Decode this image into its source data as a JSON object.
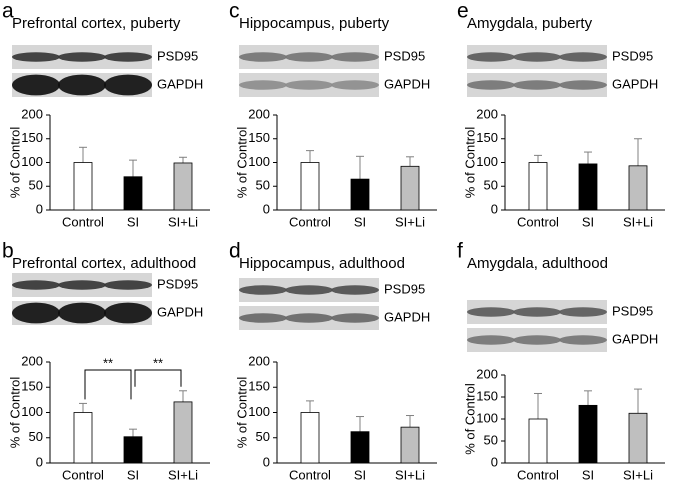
{
  "chart_data": [
    {
      "type": "bar",
      "panel_label": "a",
      "title": "Prefrontal cortex, puberty",
      "blot_labels": [
        "PSD95",
        "GAPDH"
      ],
      "ylabel": "% of Control",
      "categories": [
        "Control",
        "SI",
        "SI+Li"
      ],
      "values": [
        100,
        70,
        99
      ],
      "errors": [
        32,
        35,
        12
      ],
      "colors": [
        "#ffffff",
        "#000000",
        "#bfbfbf"
      ],
      "ylim": [
        0,
        200
      ],
      "yticks": [
        0,
        50,
        100,
        150,
        200
      ]
    },
    {
      "type": "bar",
      "panel_label": "b",
      "title": "Prefrontal cortex, adulthood",
      "blot_labels": [
        "PSD95",
        "GAPDH"
      ],
      "ylabel": "% of Control",
      "categories": [
        "Control",
        "SI",
        "SI+Li"
      ],
      "values": [
        100,
        52,
        121
      ],
      "errors": [
        18,
        15,
        22
      ],
      "colors": [
        "#ffffff",
        "#000000",
        "#bfbfbf"
      ],
      "ylim": [
        0,
        200
      ],
      "yticks": [
        0,
        50,
        100,
        150,
        200
      ],
      "annotations": [
        {
          "text": "**",
          "from": 0,
          "to": 1
        },
        {
          "text": "**",
          "from": 1,
          "to": 2
        }
      ]
    },
    {
      "type": "bar",
      "panel_label": "c",
      "title": "Hippocampus, puberty",
      "blot_labels": [
        "PSD95",
        "GAPDH"
      ],
      "ylabel": "% of Control",
      "categories": [
        "Control",
        "SI",
        "SI+Li"
      ],
      "values": [
        100,
        65,
        92
      ],
      "errors": [
        25,
        48,
        20
      ],
      "colors": [
        "#ffffff",
        "#000000",
        "#bfbfbf"
      ],
      "ylim": [
        0,
        200
      ],
      "yticks": [
        0,
        50,
        100,
        150,
        200
      ]
    },
    {
      "type": "bar",
      "panel_label": "d",
      "title": "Hippocampus, adulthood",
      "blot_labels": [
        "PSD95",
        "GAPDH"
      ],
      "ylabel": "% of Control",
      "categories": [
        "Control",
        "SI",
        "SI+Li"
      ],
      "values": [
        100,
        62,
        71
      ],
      "errors": [
        23,
        30,
        23
      ],
      "colors": [
        "#ffffff",
        "#000000",
        "#bfbfbf"
      ],
      "ylim": [
        0,
        200
      ],
      "yticks": [
        0,
        50,
        100,
        150,
        200
      ]
    },
    {
      "type": "bar",
      "panel_label": "e",
      "title": "Amygdala, puberty",
      "blot_labels": [
        "PSD95",
        "GAPDH"
      ],
      "ylabel": "% of Control",
      "categories": [
        "Control",
        "SI",
        "SI+Li"
      ],
      "values": [
        100,
        97,
        93
      ],
      "errors": [
        15,
        25,
        57
      ],
      "colors": [
        "#ffffff",
        "#000000",
        "#bfbfbf"
      ],
      "ylim": [
        0,
        200
      ],
      "yticks": [
        0,
        50,
        100,
        150,
        200
      ]
    },
    {
      "type": "bar",
      "panel_label": "f",
      "title": "Amygdala, adulthood",
      "blot_labels": [
        "PSD95",
        "GAPDH"
      ],
      "ylabel": "% of Control",
      "categories": [
        "Control",
        "SI",
        "SI+Li"
      ],
      "values": [
        100,
        131,
        113
      ],
      "errors": [
        58,
        33,
        55
      ],
      "colors": [
        "#ffffff",
        "#000000",
        "#bfbfbf"
      ],
      "ylim": [
        0,
        200
      ],
      "yticks": [
        0,
        50,
        100,
        150,
        200
      ]
    }
  ]
}
